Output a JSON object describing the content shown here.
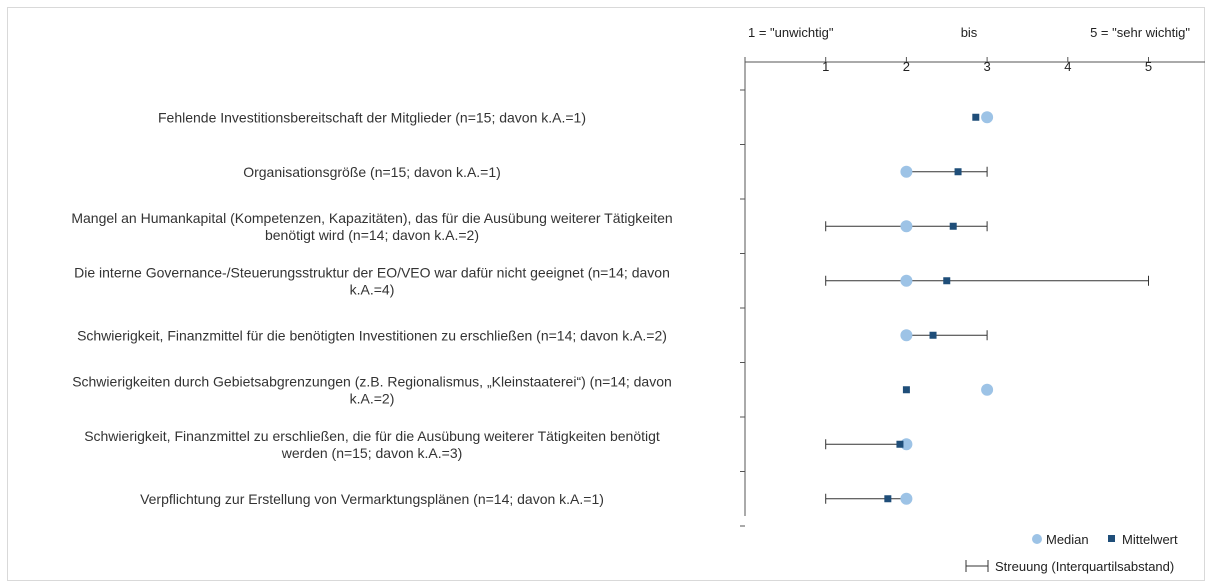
{
  "chart_data": {
    "type": "dot_plot_with_range",
    "scale_header": {
      "left": "1 = \"unwichtig\"",
      "middle": "bis",
      "right": "5 = \"sehr wichtig\""
    },
    "xlim": [
      0,
      5.7
    ],
    "ticks": [
      "1",
      "2",
      "3",
      "4",
      "5"
    ],
    "tick_values": [
      1,
      2,
      3,
      4,
      5
    ],
    "categories": [
      {
        "label_lines": [
          "Fehlende Investitionsbereitschaft der Mitglieder (n=15; davon k.A.=1)"
        ],
        "median": 3.0,
        "mean": 2.86,
        "q1": null,
        "q3": null
      },
      {
        "label_lines": [
          "Organisationsgröße (n=15; davon k.A.=1)"
        ],
        "median": 2.0,
        "mean": 2.64,
        "q1": 2.0,
        "q3": 3.0
      },
      {
        "label_lines": [
          "Mangel an Humankapital (Kompetenzen, Kapazitäten), das für die Ausübung weiterer Tätigkeiten",
          "benötigt wird (n=14; davon k.A.=2)"
        ],
        "median": 2.0,
        "mean": 2.58,
        "q1": 1.0,
        "q3": 3.0
      },
      {
        "label_lines": [
          "Die interne Governance-/Steuerungsstruktur der EO/VEO war dafür nicht geeignet (n=14; davon",
          "k.A.=4)"
        ],
        "median": 2.0,
        "mean": 2.5,
        "q1": 1.0,
        "q3": 5.0
      },
      {
        "label_lines": [
          "Schwierigkeit, Finanzmittel für die benötigten Investitionen zu erschließen (n=14; davon k.A.=2)"
        ],
        "median": 2.0,
        "mean": 2.33,
        "q1": 2.0,
        "q3": 3.0
      },
      {
        "label_lines": [
          "Schwierigkeiten durch Gebietsabgrenzungen (z.B. Regionalismus, „Kleinstaaterei“) (n=14; davon",
          "k.A.=2)"
        ],
        "median": 3.0,
        "mean": 2.0,
        "q1": null,
        "q3": null
      },
      {
        "label_lines": [
          "Schwierigkeit, Finanzmittel zu erschließen, die für die Ausübung weiterer Tätigkeiten benötigt",
          "werden (n=15; davon k.A.=3)"
        ],
        "median": 2.0,
        "mean": 1.92,
        "q1": 1.0,
        "q3": 2.0
      },
      {
        "label_lines": [
          "Verpflichtung zur Erstellung von Vermarktungsplänen (n=14; davon k.A.=1)"
        ],
        "median": 2.0,
        "mean": 1.77,
        "q1": 1.0,
        "q3": 2.0
      }
    ],
    "legend": {
      "median_label": "Median",
      "mean_label": "Mittelwert",
      "range_label": "Streuung (Interquartilsabstand)"
    },
    "colors": {
      "median": "#9dc3e6",
      "mean": "#1f4e79",
      "range": "#333333",
      "axis": "#555555"
    }
  }
}
